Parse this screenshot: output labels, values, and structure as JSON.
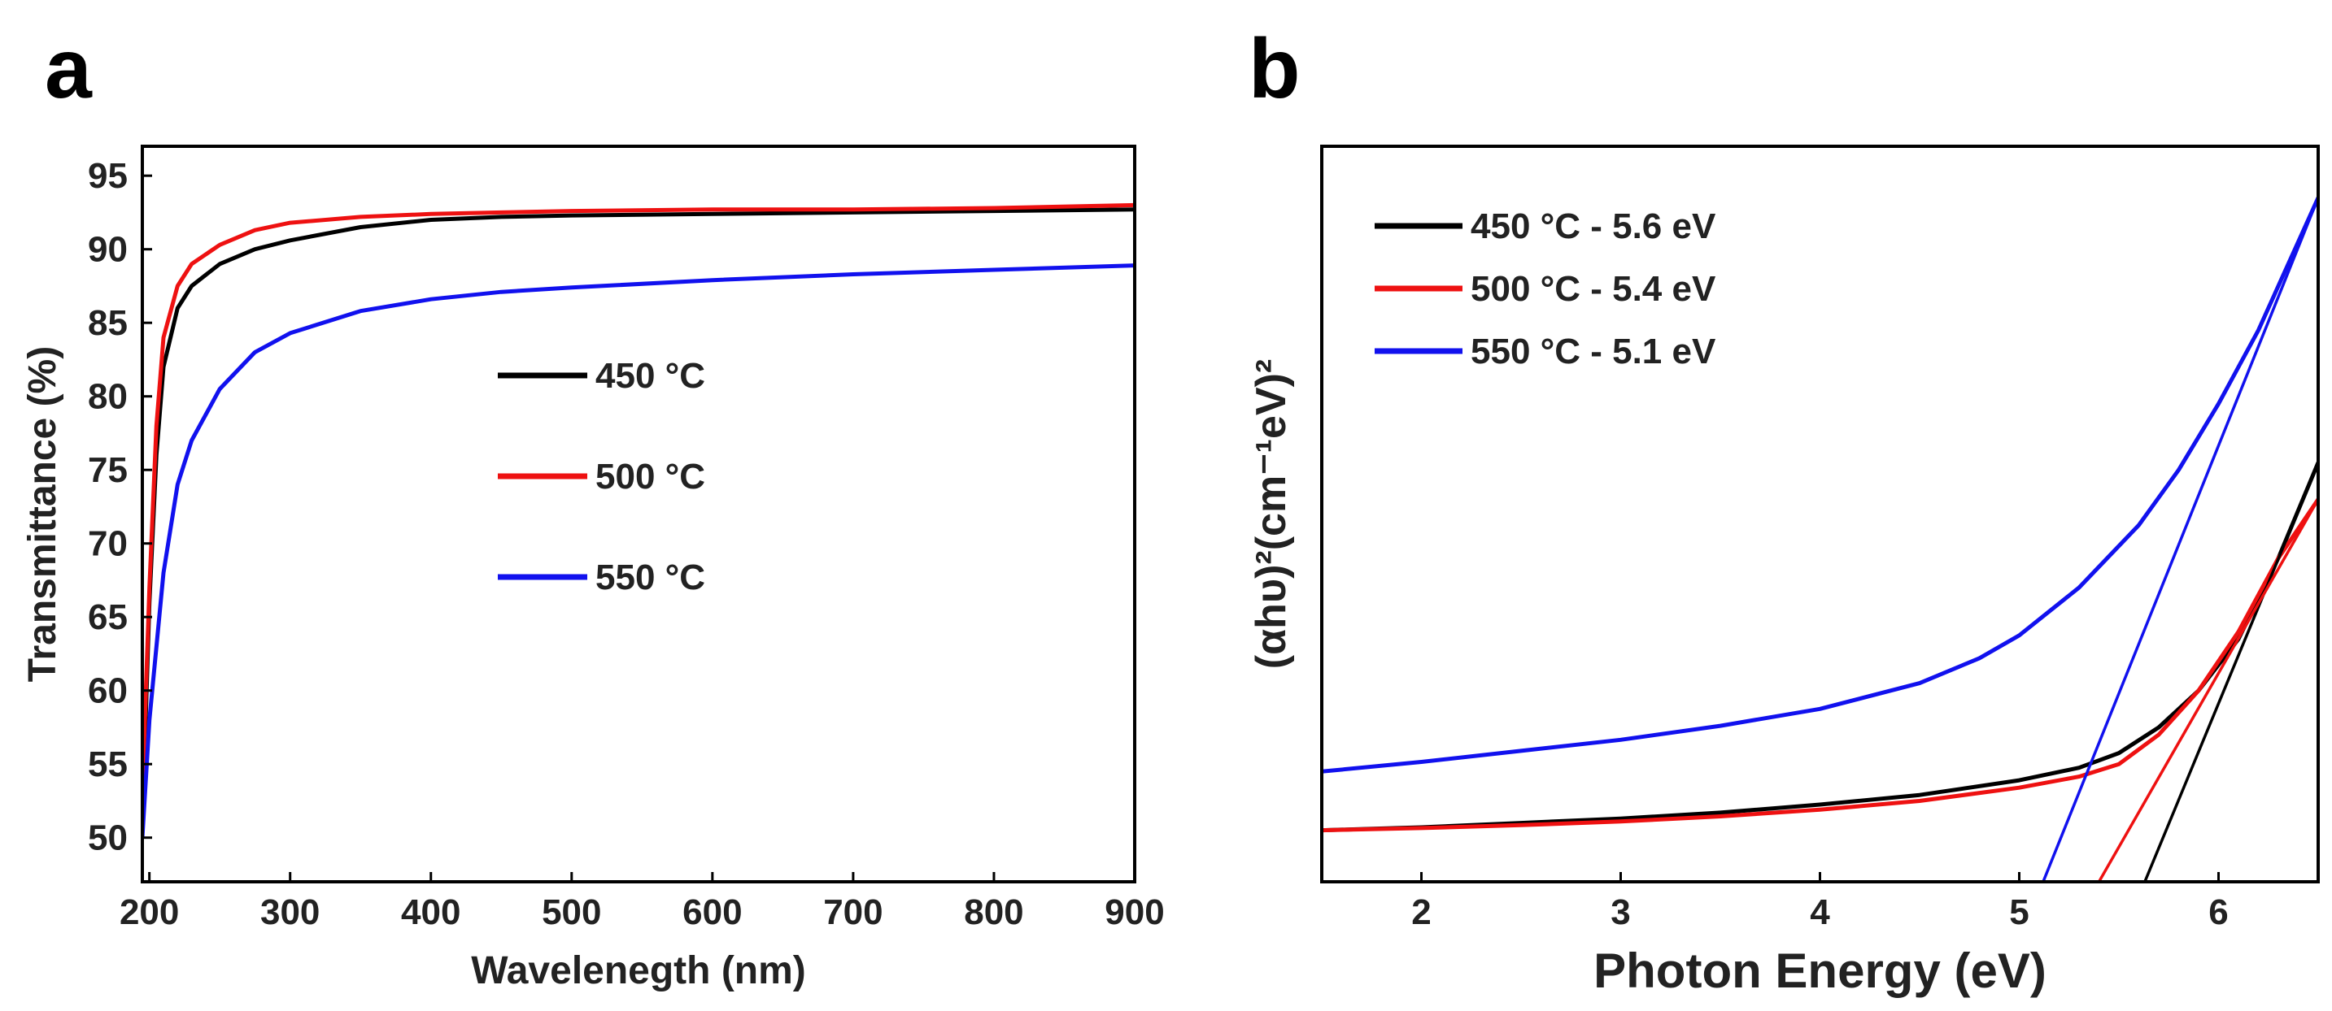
{
  "figure": {
    "panel_a_label": "a",
    "panel_b_label": "b"
  },
  "chart_data": [
    {
      "type": "line",
      "panel": "a",
      "title": "",
      "xlabel": "Wavelenegth (nm)",
      "ylabel": "Transmittance (%)",
      "xlim": [
        195,
        900
      ],
      "ylim": [
        47,
        97
      ],
      "xticks": [
        200,
        300,
        400,
        500,
        600,
        700,
        800,
        900
      ],
      "yticks": [
        50,
        55,
        60,
        65,
        70,
        75,
        80,
        85,
        90,
        95
      ],
      "legend_position": "center",
      "series": [
        {
          "name": "450 °C",
          "color": "#000000",
          "x": [
            195,
            200,
            205,
            210,
            220,
            230,
            250,
            275,
            300,
            350,
            400,
            450,
            500,
            600,
            700,
            800,
            900
          ],
          "y": [
            51,
            66,
            76,
            82,
            86,
            87.5,
            89,
            90,
            90.6,
            91.5,
            92,
            92.2,
            92.3,
            92.4,
            92.5,
            92.6,
            92.7
          ]
        },
        {
          "name": "500 °C",
          "color": "#ee1111",
          "x": [
            195,
            200,
            205,
            210,
            220,
            230,
            250,
            275,
            300,
            350,
            400,
            450,
            500,
            600,
            700,
            800,
            900
          ],
          "y": [
            53,
            67,
            78,
            84,
            87.5,
            89,
            90.3,
            91.3,
            91.8,
            92.2,
            92.4,
            92.5,
            92.6,
            92.7,
            92.7,
            92.8,
            93
          ]
        },
        {
          "name": "550 °C",
          "color": "#1111ee",
          "x": [
            195,
            200,
            210,
            220,
            230,
            250,
            275,
            300,
            350,
            400,
            450,
            500,
            600,
            700,
            800,
            900
          ],
          "y": [
            50,
            58,
            68,
            74,
            77,
            80.5,
            83,
            84.3,
            85.8,
            86.6,
            87.1,
            87.4,
            87.9,
            88.3,
            88.6,
            88.9
          ]
        }
      ]
    },
    {
      "type": "line",
      "panel": "b",
      "title": "",
      "xlabel": "Photon Energy (eV)",
      "ylabel": "(αhυ)²(cm⁻¹eV)²",
      "xlim": [
        1.5,
        6.5
      ],
      "ylim": [
        0,
        100
      ],
      "xticks": [
        2,
        3,
        4,
        5,
        6
      ],
      "yticks": [],
      "legend_position": "top-left",
      "series": [
        {
          "name": "450 °C - 5.6 eV",
          "color": "#000000",
          "x": [
            1.5,
            2,
            2.5,
            3,
            3.5,
            4,
            4.5,
            5,
            5.3,
            5.5,
            5.7,
            5.9,
            6.1,
            6.3,
            6.5
          ],
          "y": [
            7,
            7.4,
            8,
            8.6,
            9.4,
            10.5,
            11.8,
            13.8,
            15.5,
            17.5,
            21,
            26,
            33,
            44,
            57
          ]
        },
        {
          "name": "500 °C - 5.4 eV",
          "color": "#ee1111",
          "x": [
            1.5,
            2,
            2.5,
            3,
            3.5,
            4,
            4.5,
            5,
            5.3,
            5.5,
            5.7,
            5.9,
            6.1,
            6.3,
            6.5
          ],
          "y": [
            7,
            7.3,
            7.7,
            8.2,
            8.9,
            9.8,
            11,
            12.8,
            14.3,
            16,
            20,
            26,
            34,
            44,
            52
          ]
        },
        {
          "name": "550 °C - 5.1 eV",
          "color": "#1111ee",
          "x": [
            1.5,
            2,
            2.5,
            3,
            3.5,
            4,
            4.5,
            4.8,
            5,
            5.3,
            5.6,
            5.8,
            6,
            6.2,
            6.5
          ],
          "y": [
            15,
            16.3,
            17.8,
            19.3,
            21.2,
            23.5,
            27,
            30.4,
            33.5,
            40,
            48.5,
            56,
            65,
            75,
            93
          ]
        }
      ],
      "fit_lines": [
        {
          "name": "450 °C fit",
          "color": "#000000",
          "x": [
            5.63,
            6.5
          ],
          "y": [
            0,
            57
          ]
        },
        {
          "name": "500 °C fit",
          "color": "#ee1111",
          "x": [
            5.4,
            6.5
          ],
          "y": [
            0,
            52
          ]
        },
        {
          "name": "550 °C fit",
          "color": "#1111ee",
          "x": [
            5.12,
            6.5
          ],
          "y": [
            0,
            93
          ]
        }
      ]
    }
  ]
}
